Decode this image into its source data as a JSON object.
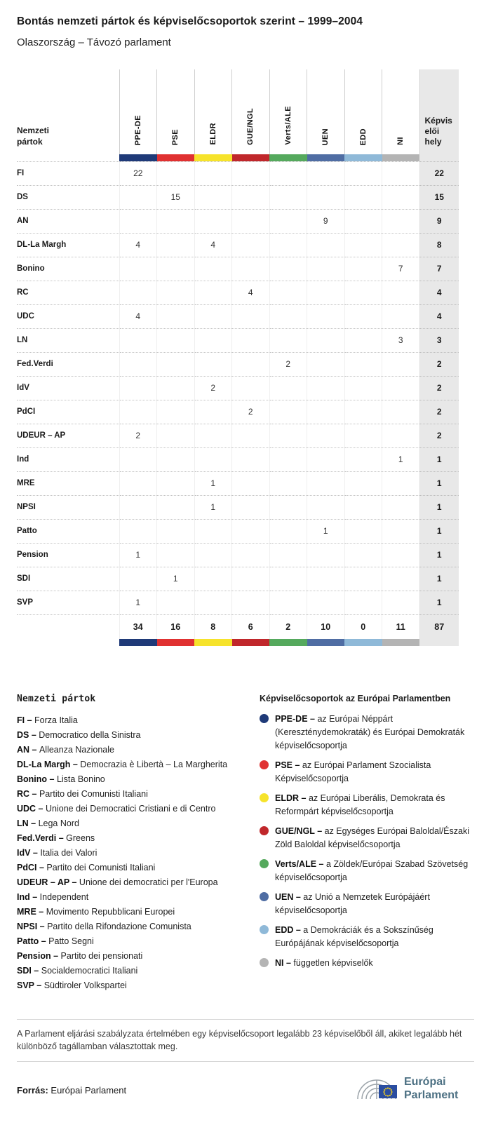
{
  "header": {
    "title": "Bontás nemzeti pártok és képviselőcsoportok szerint – 1999–2004",
    "subtitle": "Olaszország – Távozó parlament"
  },
  "chart_data": {
    "type": "table",
    "title": "Bontás nemzeti pártok és képviselőcsoportok szerint – 1999–2004",
    "subtitle": "Olaszország – Távozó parlament",
    "row_dimension": "Nemzeti pártok",
    "value_column": "Képviselői hely",
    "groups": [
      {
        "id": "PPE-DE",
        "color": "#1f3a78"
      },
      {
        "id": "PSE",
        "color": "#e03131"
      },
      {
        "id": "ELDR",
        "color": "#f6e32b"
      },
      {
        "id": "GUE/NGL",
        "color": "#c0272b"
      },
      {
        "id": "Verts/ALE",
        "color": "#55a95d"
      },
      {
        "id": "UEN",
        "color": "#4f6da3"
      },
      {
        "id": "EDD",
        "color": "#8fb9d8"
      },
      {
        "id": "NI",
        "color": "#b4b4b4"
      }
    ],
    "rows": [
      {
        "party": "FI",
        "values": [
          22,
          null,
          null,
          null,
          null,
          null,
          null,
          null
        ],
        "total": 22
      },
      {
        "party": "DS",
        "values": [
          null,
          15,
          null,
          null,
          null,
          null,
          null,
          null
        ],
        "total": 15
      },
      {
        "party": "AN",
        "values": [
          null,
          null,
          null,
          null,
          null,
          9,
          null,
          null
        ],
        "total": 9
      },
      {
        "party": "DL-La Margh",
        "values": [
          4,
          null,
          4,
          null,
          null,
          null,
          null,
          null
        ],
        "total": 8
      },
      {
        "party": "Bonino",
        "values": [
          null,
          null,
          null,
          null,
          null,
          null,
          null,
          7
        ],
        "total": 7
      },
      {
        "party": "RC",
        "values": [
          null,
          null,
          null,
          4,
          null,
          null,
          null,
          null
        ],
        "total": 4
      },
      {
        "party": "UDC",
        "values": [
          4,
          null,
          null,
          null,
          null,
          null,
          null,
          null
        ],
        "total": 4
      },
      {
        "party": "LN",
        "values": [
          null,
          null,
          null,
          null,
          null,
          null,
          null,
          3
        ],
        "total": 3
      },
      {
        "party": "Fed.Verdi",
        "values": [
          null,
          null,
          null,
          null,
          2,
          null,
          null,
          null
        ],
        "total": 2
      },
      {
        "party": "IdV",
        "values": [
          null,
          null,
          2,
          null,
          null,
          null,
          null,
          null
        ],
        "total": 2
      },
      {
        "party": "PdCI",
        "values": [
          null,
          null,
          null,
          2,
          null,
          null,
          null,
          null
        ],
        "total": 2
      },
      {
        "party": "UDEUR – AP",
        "values": [
          2,
          null,
          null,
          null,
          null,
          null,
          null,
          null
        ],
        "total": 2
      },
      {
        "party": "Ind",
        "values": [
          null,
          null,
          null,
          null,
          null,
          null,
          null,
          1
        ],
        "total": 1
      },
      {
        "party": "MRE",
        "values": [
          null,
          null,
          1,
          null,
          null,
          null,
          null,
          null
        ],
        "total": 1
      },
      {
        "party": "NPSI",
        "values": [
          null,
          null,
          1,
          null,
          null,
          null,
          null,
          null
        ],
        "total": 1
      },
      {
        "party": "Patto",
        "values": [
          null,
          null,
          null,
          null,
          null,
          1,
          null,
          null
        ],
        "total": 1
      },
      {
        "party": "Pension",
        "values": [
          1,
          null,
          null,
          null,
          null,
          null,
          null,
          null
        ],
        "total": 1
      },
      {
        "party": "SDI",
        "values": [
          null,
          1,
          null,
          null,
          null,
          null,
          null,
          null
        ],
        "total": 1
      },
      {
        "party": "SVP",
        "values": [
          1,
          null,
          null,
          null,
          null,
          null,
          null,
          null
        ],
        "total": 1
      }
    ],
    "totals": [
      34,
      16,
      8,
      6,
      2,
      10,
      0,
      11
    ],
    "grand_total": 87
  },
  "legend_left": {
    "heading": "Nemzeti pártok",
    "items": [
      {
        "abbr": "FI",
        "name": "Forza Italia"
      },
      {
        "abbr": "DS",
        "name": "Democratico della Sinistra"
      },
      {
        "abbr": "AN",
        "name": "Alleanza Nazionale"
      },
      {
        "abbr": "DL-La Margh",
        "name": "Democrazia è Libertà – La Margherita"
      },
      {
        "abbr": "Bonino",
        "name": "Lista Bonino"
      },
      {
        "abbr": "RC",
        "name": "Partito dei Comunisti Italiani"
      },
      {
        "abbr": "UDC",
        "name": "Unione dei Democratici Cristiani e di Centro"
      },
      {
        "abbr": "LN",
        "name": "Lega Nord"
      },
      {
        "abbr": "Fed.Verdi",
        "name": "Greens"
      },
      {
        "abbr": "IdV",
        "name": "Italia dei Valori"
      },
      {
        "abbr": "PdCI",
        "name": "Partito dei Comunisti Italiani"
      },
      {
        "abbr": "UDEUR – AP",
        "name": "Unione dei democratici per l'Europa"
      },
      {
        "abbr": "Ind",
        "name": "Independent"
      },
      {
        "abbr": "MRE",
        "name": "Movimento Repubblicani Europei"
      },
      {
        "abbr": "NPSI",
        "name": "Partito della Rifondazione Comunista"
      },
      {
        "abbr": "Patto",
        "name": "Patto Segni"
      },
      {
        "abbr": "Pension",
        "name": "Partito dei pensionati"
      },
      {
        "abbr": "SDI",
        "name": "Socialdemocratici Italiani"
      },
      {
        "abbr": "SVP",
        "name": "Südtiroler Volkspartei"
      }
    ]
  },
  "legend_right": {
    "heading": "Képviselőcsoportok az Európai Parlamentben",
    "items": [
      {
        "abbr": "PPE-DE",
        "color": "#1f3a78",
        "desc": "az Európai Néppárt (Kereszténydemokraták) és Európai Demokraták képviselőcsoportja"
      },
      {
        "abbr": "PSE",
        "color": "#e03131",
        "desc": "az Európai Parlament Szocialista Képviselőcsoportja"
      },
      {
        "abbr": "ELDR",
        "color": "#f6e32b",
        "desc": "az Európai Liberális, Demokrata és Reformpárt képviselőcsoportja"
      },
      {
        "abbr": "GUE/NGL",
        "color": "#c0272b",
        "desc": "az Egységes Európai Baloldal/Északi Zöld Baloldal képviselőcsoportja"
      },
      {
        "abbr": "Verts/ALE",
        "color": "#55a95d",
        "desc": "a Zöldek/Európai Szabad Szövetség képviselőcsoportja"
      },
      {
        "abbr": "UEN",
        "color": "#4f6da3",
        "desc": "az Unió a Nemzetek Európájáért képviselőcsoportja"
      },
      {
        "abbr": "EDD",
        "color": "#8fb9d8",
        "desc": "a Demokráciák és a Sokszínűség Európájának képviselőcsoportja"
      },
      {
        "abbr": "NI",
        "color": "#b4b4b4",
        "desc": "független képviselők"
      }
    ]
  },
  "footer": {
    "note": "A Parlament eljárási szabályzata értelmében egy képviselőcsoport legalább 23 képviselőből áll, akiket legalább hét különböző tagállamban választottak meg.",
    "source_label": "Forrás:",
    "source_value": "Európai Parlament",
    "logo": {
      "line1": "Európai",
      "line2": "Parlament"
    }
  }
}
